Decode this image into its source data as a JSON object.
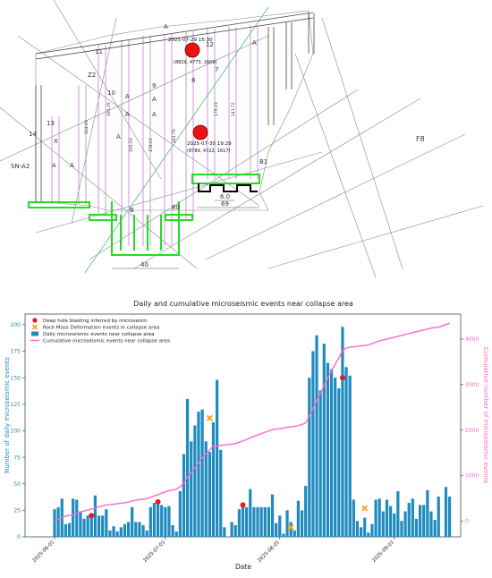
{
  "map": {
    "events": [
      {
        "date": "2025-07-29 15:30",
        "coords": "(8829, 4773, 1609)"
      },
      {
        "date": "2025-07-30 19:29",
        "coords": "(8789, 4722, 1617)"
      }
    ],
    "labels": {
      "a_top": "A",
      "a_right": "A",
      "c12": "12",
      "c10": "10",
      "c9": "9",
      "c8": "8",
      "c7": "7",
      "c13": "13",
      "c14": "14",
      "c11": "11",
      "c2": "Z2",
      "sn": "SN-A2",
      "f8": "F8",
      "b1": "B1",
      "dim40": "40",
      "dim69": "69",
      "dim60": "6.0",
      "dim80": "80",
      "x": "X",
      "a1": "A",
      "a2": "A",
      "a3": "A",
      "a4": "A",
      "a5": "A",
      "a6": "A",
      "a7": "A",
      "b": "B",
      "v1": "104.93",
      "v2": "191.29",
      "v3": "195.93",
      "v4": "178.03",
      "v5": "181.79",
      "v6": "179.23",
      "v7": "141.72"
    }
  },
  "chart_data": {
    "type": "bar",
    "title": "Daily and cumulative microseismic events near collapse area",
    "xlabel": "Date",
    "ylabel": "Number of daily microseismic events",
    "y2label": "Cumulative number of microseismic events",
    "ylim": [
      0,
      210
    ],
    "y2lim": [
      -350,
      4550
    ],
    "yticks": [
      0,
      25,
      50,
      75,
      100,
      125,
      150,
      175,
      200
    ],
    "y2ticks": [
      0,
      1000,
      2000,
      3000,
      4000
    ],
    "xticks": [
      "2025-06-01",
      "2025-07-01",
      "2025-08-01",
      "2025-09-01"
    ],
    "colors": {
      "bars": "#1f8bbf",
      "line": "#ff66cc",
      "blast": "#e31a1c",
      "deform": "#f5a623",
      "axis_left": "#1f8bbf",
      "axis_right": "#ff66cc"
    },
    "legend": {
      "position": "top-left",
      "items": [
        {
          "label": "Deep hole blasting inferred by microseism",
          "kind": "dot"
        },
        {
          "label": "Rock Mass Deformation events in collapse area",
          "kind": "x"
        },
        {
          "label": "Daily microseismic events near collapse area",
          "kind": "bar"
        },
        {
          "label": "Cumulative microseismic events near collapse area",
          "kind": "line"
        }
      ]
    },
    "start_date": "2025-06-01",
    "daily": [
      26,
      28,
      36,
      12,
      13,
      36,
      35,
      24,
      17,
      20,
      22,
      39,
      20,
      20,
      26,
      6,
      10,
      5,
      9,
      12,
      14,
      28,
      14,
      14,
      11,
      6,
      28,
      32,
      35,
      30,
      28,
      29,
      11,
      5,
      43,
      78,
      130,
      90,
      105,
      118,
      120,
      90,
      80,
      108,
      148,
      82,
      9,
      0,
      14,
      11,
      26,
      32,
      28,
      45,
      28,
      28,
      28,
      28,
      28,
      40,
      13,
      20,
      3,
      25,
      14,
      6,
      34,
      25,
      48,
      150,
      175,
      190,
      138,
      182,
      164,
      158,
      150,
      140,
      198,
      160,
      152,
      35,
      15,
      9,
      18,
      4,
      12,
      35,
      36,
      24,
      35,
      29,
      22,
      43,
      15,
      24,
      32,
      36,
      17,
      30,
      30,
      44,
      24,
      16,
      38,
      0,
      47,
      38
    ],
    "cumulative": [
      10,
      40,
      70,
      110,
      120,
      135,
      170,
      200,
      220,
      240,
      260,
      290,
      310,
      330,
      350,
      360,
      370,
      380,
      390,
      400,
      415,
      440,
      455,
      470,
      480,
      490,
      520,
      550,
      580,
      610,
      640,
      670,
      680,
      700,
      750,
      830,
      960,
      1060,
      1160,
      1280,
      1390,
      1480,
      1560,
      1650,
      1640,
      1660,
      1670,
      1680,
      1690,
      1700,
      1730,
      1760,
      1790,
      1830,
      1860,
      1890,
      1920,
      1950,
      1980,
      2010,
      2020,
      2030,
      2040,
      2060,
      2070,
      2080,
      2100,
      2120,
      2160,
      2300,
      2470,
      2650,
      2800,
      2980,
      3150,
      3300,
      3450,
      3580,
      3750,
      3800,
      3820,
      3830,
      3840,
      3850,
      3860,
      3870,
      3900,
      3930,
      3960,
      3980,
      4000,
      4020,
      4040,
      4060,
      4080,
      4100,
      4120,
      4140,
      4160,
      4180,
      4200,
      4220,
      4240,
      4250,
      4260,
      4290,
      4320,
      4350
    ],
    "blasting_events": [
      {
        "day": 10,
        "y": 20
      },
      {
        "day": 28,
        "y": 33
      },
      {
        "day": 51,
        "y": 30
      },
      {
        "day": 78,
        "y": 150
      }
    ],
    "deformation_events": [
      {
        "day": 42,
        "y": 112
      },
      {
        "day": 64,
        "y": 9
      },
      {
        "day": 84,
        "y": 27
      }
    ]
  }
}
